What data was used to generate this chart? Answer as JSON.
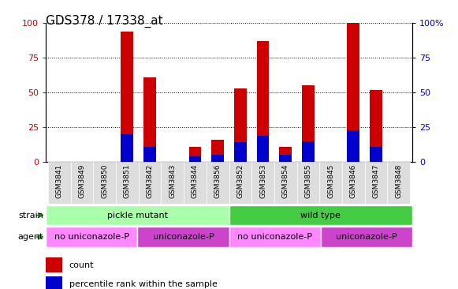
{
  "title": "GDS378 / 17338_at",
  "samples": [
    "GSM3841",
    "GSM3849",
    "GSM3850",
    "GSM3851",
    "GSM3842",
    "GSM3843",
    "GSM3844",
    "GSM3856",
    "GSM3852",
    "GSM3853",
    "GSM3854",
    "GSM3855",
    "GSM3845",
    "GSM3846",
    "GSM3847",
    "GSM3848"
  ],
  "count": [
    0,
    0,
    0,
    94,
    61,
    0,
    11,
    16,
    53,
    87,
    11,
    55,
    0,
    100,
    52,
    0
  ],
  "percentile": [
    0,
    0,
    0,
    20,
    11,
    0,
    4,
    5,
    14,
    19,
    5,
    15,
    0,
    23,
    11,
    0
  ],
  "bar_color": "#cc0000",
  "percentile_color": "#0000cc",
  "ylim": [
    0,
    100
  ],
  "yticks": [
    0,
    25,
    50,
    75,
    100
  ],
  "ytick_color_left": "#cc0000",
  "ytick_color_right": "#0000bb",
  "strain_groups": [
    {
      "label": "pickle mutant",
      "start": 0,
      "end": 8,
      "color": "#aaffaa"
    },
    {
      "label": "wild type",
      "start": 8,
      "end": 16,
      "color": "#44cc44"
    }
  ],
  "agent_groups": [
    {
      "label": "no uniconazole-P",
      "start": 0,
      "end": 4,
      "color": "#ff88ff"
    },
    {
      "label": "uniconazole-P",
      "start": 4,
      "end": 8,
      "color": "#cc44cc"
    },
    {
      "label": "no uniconazole-P",
      "start": 8,
      "end": 12,
      "color": "#ff88ff"
    },
    {
      "label": "uniconazole-P",
      "start": 12,
      "end": 16,
      "color": "#cc44cc"
    }
  ],
  "legend_count_label": "count",
  "legend_percentile_label": "percentile rank within the sample",
  "xticklabel_fontsize": 6.5,
  "title_fontsize": 11,
  "bar_width": 0.55
}
